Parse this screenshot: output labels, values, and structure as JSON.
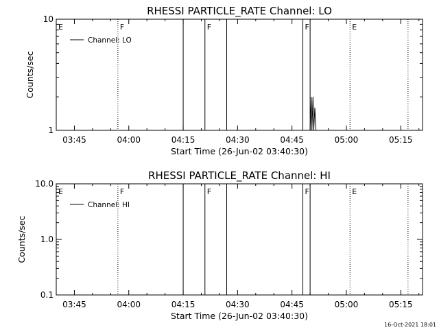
{
  "chart_data": [
    {
      "type": "line",
      "title": "RHESSI PARTICLE_RATE Channel: LO",
      "xlabel": "Start Time (26-Jun-02 03:40:30)",
      "ylabel": "Counts/sec",
      "yscale": "log",
      "ylim": [
        1,
        10
      ],
      "ytick_labels": [
        "1",
        "10"
      ],
      "xlim": [
        "03:40",
        "05:21"
      ],
      "xtick_labels": [
        "03:45",
        "04:00",
        "04:15",
        "04:30",
        "04:45",
        "05:00",
        "05:15"
      ],
      "legend": "Channel: LO",
      "legend_position": "top-left",
      "grid": false,
      "flag_markers": [
        {
          "label": "E",
          "time": "03:40",
          "style": "none"
        },
        {
          "label": "F",
          "time": "03:57",
          "style": "dotted"
        },
        {
          "label": "",
          "time": "04:15",
          "style": "solid"
        },
        {
          "label": "F",
          "time": "04:21",
          "style": "solid"
        },
        {
          "label": "",
          "time": "04:27",
          "style": "solid"
        },
        {
          "label": "F",
          "time": "04:48",
          "style": "solid"
        },
        {
          "label": "",
          "time": "04:50",
          "style": "solid"
        },
        {
          "label": "E",
          "time": "05:01",
          "style": "dotted"
        },
        {
          "label": "",
          "time": "05:17",
          "style": "dotted"
        }
      ],
      "series": [
        {
          "x": [
            "04:50",
            "04:50.3",
            "04:50.5",
            "04:50.8",
            "04:51",
            "04:51.3",
            "04:51.6"
          ],
          "values": [
            1,
            2,
            1,
            2,
            1,
            1.6,
            1
          ]
        }
      ]
    },
    {
      "type": "line",
      "title": "RHESSI PARTICLE_RATE Channel: HI",
      "xlabel": "Start Time (26-Jun-02 03:40:30)",
      "ylabel": "Counts/sec",
      "yscale": "log",
      "ylim": [
        0.1,
        10
      ],
      "ytick_labels": [
        "0.1",
        "1.0",
        "10.0"
      ],
      "xlim": [
        "03:40",
        "05:21"
      ],
      "xtick_labels": [
        "03:45",
        "04:00",
        "04:15",
        "04:30",
        "04:45",
        "05:00",
        "05:15"
      ],
      "legend": "Channel: HI",
      "legend_position": "top-left",
      "grid": false,
      "flag_markers": [
        {
          "label": "E",
          "time": "03:40",
          "style": "none"
        },
        {
          "label": "F",
          "time": "03:57",
          "style": "dotted"
        },
        {
          "label": "",
          "time": "04:15",
          "style": "solid"
        },
        {
          "label": "F",
          "time": "04:21",
          "style": "solid"
        },
        {
          "label": "",
          "time": "04:27",
          "style": "solid"
        },
        {
          "label": "F",
          "time": "04:48",
          "style": "solid"
        },
        {
          "label": "",
          "time": "04:50",
          "style": "solid"
        },
        {
          "label": "E",
          "time": "05:01",
          "style": "dotted"
        },
        {
          "label": "",
          "time": "05:17",
          "style": "dotted"
        }
      ],
      "series": []
    }
  ],
  "footer": {
    "timestamp": "16-Oct-2021 18:01"
  }
}
